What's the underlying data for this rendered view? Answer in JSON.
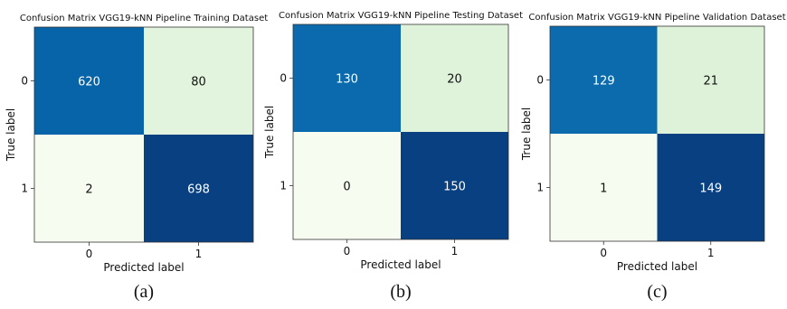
{
  "chart_data": [
    {
      "type": "heatmap",
      "title": "Confusion Matrix VGG19-kNN Pipeline Training Dataset",
      "xlabel": "Predicted label",
      "ylabel": "True label",
      "x_ticks": [
        "0",
        "1"
      ],
      "y_ticks": [
        "0",
        "1"
      ],
      "matrix": [
        [
          620,
          80
        ],
        [
          2,
          698
        ]
      ],
      "colormap": "GnBu",
      "caption": "(a)"
    },
    {
      "type": "heatmap",
      "title": "Confusion Matrix VGG19-kNN Pipeline Testing Dataset",
      "xlabel": "Predicted label",
      "ylabel": "True label",
      "x_ticks": [
        "0",
        "1"
      ],
      "y_ticks": [
        "0",
        "1"
      ],
      "matrix": [
        [
          130,
          20
        ],
        [
          0,
          150
        ]
      ],
      "colormap": "GnBu",
      "caption": "(b)"
    },
    {
      "type": "heatmap",
      "title": "Confusion Matrix VGG19-kNN Pipeline Validation Dataset",
      "xlabel": "Predicted label",
      "ylabel": "True label",
      "x_ticks": [
        "0",
        "1"
      ],
      "y_ticks": [
        "0",
        "1"
      ],
      "matrix": [
        [
          129,
          21
        ],
        [
          1,
          149
        ]
      ],
      "colormap": "GnBu",
      "caption": "(c)"
    }
  ],
  "colors": {
    "scale": [
      "#f7fcf0",
      "#e0f3db",
      "#ccebc5",
      "#a8ddb5",
      "#7bccc4",
      "#4eb3d3",
      "#2b8cbe",
      "#0868ac",
      "#084081"
    ],
    "text_light": "#ffffff",
    "text_dark": "#111111"
  }
}
